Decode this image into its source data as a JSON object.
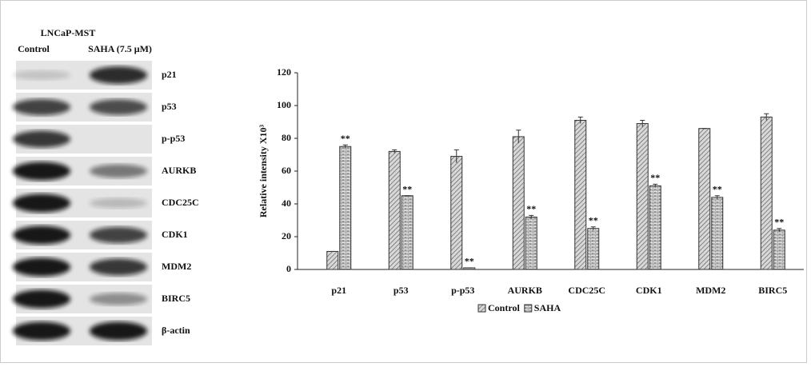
{
  "blot": {
    "cell_line": "LNCaP-MST",
    "lanes": [
      "Control",
      "SAHA (7.5 μM)"
    ],
    "bands": [
      "p21",
      "p53",
      "p-p53",
      "AURKB",
      "CDC25C",
      "CDK1",
      "MDM2",
      "BIRC5",
      "β-actin"
    ]
  },
  "chart_data": {
    "type": "bar",
    "y_label": "Relative intensity X10³",
    "categories": [
      "p21",
      "p53",
      "p-p53",
      "AURKB",
      "CDC25C",
      "CDK1",
      "MDM2",
      "BIRC5"
    ],
    "series": [
      {
        "name": "Control",
        "color": "#9a9a9a",
        "values": [
          11,
          72,
          69,
          81,
          91,
          89,
          86,
          93
        ],
        "errors": [
          0,
          1,
          4,
          4,
          2,
          2,
          0,
          2
        ]
      },
      {
        "name": "SAHA",
        "color": "#9a9a9a",
        "values": [
          75,
          45,
          1,
          32,
          25,
          51,
          44,
          24
        ],
        "errors": [
          1,
          0,
          0,
          1,
          1,
          1,
          1,
          1
        ],
        "significance": [
          "**",
          "**",
          "**",
          "**",
          "**",
          "**",
          "**",
          "**"
        ]
      }
    ],
    "ylim": [
      0,
      120
    ],
    "yticks": [
      0,
      20,
      40,
      60,
      80,
      100,
      120
    ],
    "grid": false,
    "legend": "bottom"
  }
}
